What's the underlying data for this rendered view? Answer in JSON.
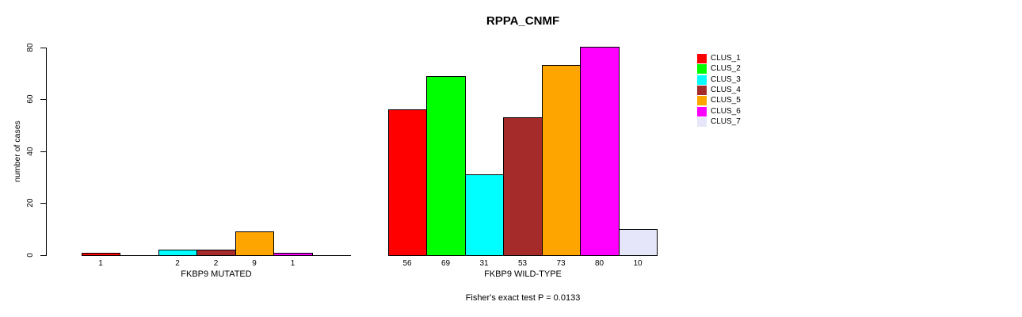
{
  "chart_data": {
    "type": "bar",
    "title": "RPPA_CNMF",
    "ylabel": "number of cases",
    "xlabel": "",
    "ylim": [
      0,
      80
    ],
    "yticks": [
      0,
      20,
      40,
      60,
      80
    ],
    "grid": false,
    "legend_position": "right",
    "bar_value_labels": true,
    "categories": [
      "FKBP9 MUTATED",
      "FKBP9 WILD-TYPE"
    ],
    "series": [
      {
        "name": "CLUS_1",
        "color": "#FF0000",
        "values": [
          1,
          56
        ]
      },
      {
        "name": "CLUS_2",
        "color": "#00FF00",
        "values": [
          0,
          69
        ]
      },
      {
        "name": "CLUS_3",
        "color": "#00FFFF",
        "values": [
          2,
          31
        ]
      },
      {
        "name": "CLUS_4",
        "color": "#A52A2A",
        "values": [
          2,
          53
        ]
      },
      {
        "name": "CLUS_5",
        "color": "#FFA500",
        "values": [
          9,
          73
        ]
      },
      {
        "name": "CLUS_6",
        "color": "#FF00FF",
        "values": [
          1,
          80
        ]
      },
      {
        "name": "CLUS_7",
        "color": "#E6E6FA",
        "values": [
          0,
          10
        ]
      }
    ],
    "annotation": "Fisher's exact test P = 0.0133",
    "axis_color": "#000000",
    "background_color": "#FFFFFF"
  }
}
